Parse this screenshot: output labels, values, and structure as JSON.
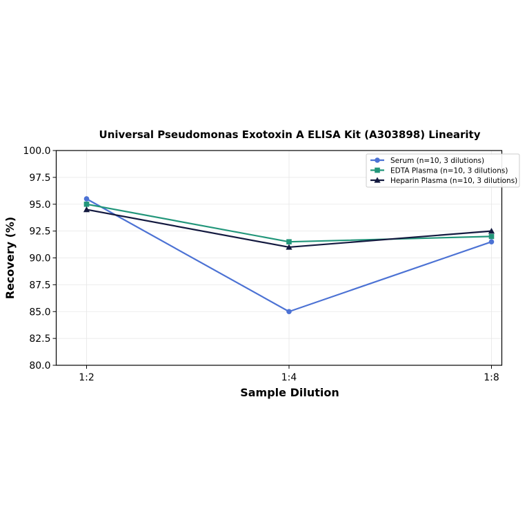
{
  "chart_data": {
    "type": "line",
    "title": "Universal Pseudomonas Exotoxin A ELISA Kit (A303898) Linearity",
    "xlabel": "Sample Dilution",
    "ylabel": "Recovery (%)",
    "categories": [
      "1:2",
      "1:4",
      "1:8"
    ],
    "ylim": [
      80.0,
      100.0
    ],
    "yticks": [
      "80.0",
      "82.5",
      "85.0",
      "87.5",
      "90.0",
      "92.5",
      "95.0",
      "97.5",
      "100.0"
    ],
    "grid": true,
    "legend_position": "top-right",
    "series": [
      {
        "name": "Serum (n=10, 3 dilutions)",
        "values": [
          95.5,
          85.0,
          91.5
        ],
        "color": "#4c72d4",
        "marker": "circle"
      },
      {
        "name": "EDTA Plasma (n=10, 3 dilutions)",
        "values": [
          95.0,
          91.5,
          92.0
        ],
        "color": "#22967a",
        "marker": "square"
      },
      {
        "name": "Heparin Plasma (n=10, 3 dilutions)",
        "values": [
          94.5,
          91.0,
          92.5
        ],
        "color": "#13193f",
        "marker": "triangle"
      }
    ]
  }
}
